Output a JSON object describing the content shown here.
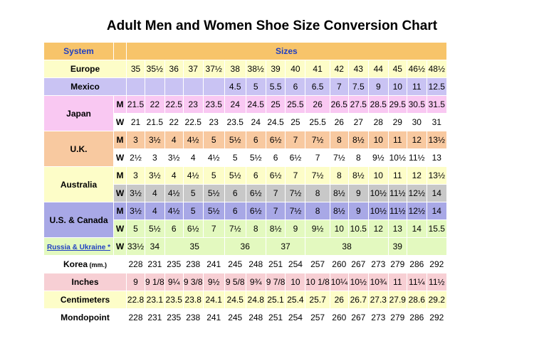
{
  "title": "Adult Men and Women Shoe Size Conversion Chart",
  "header": {
    "system": "System",
    "sizes": "Sizes"
  },
  "colors": {
    "orange": "#f7c46a",
    "yellow": "#fdfdc8",
    "purple": "#c9c3f3",
    "pink": "#f9c8f2",
    "peach": "#f8c9a0",
    "grey": "#c8c8c8",
    "blue": "#a8a8e6",
    "green": "#e3f9bf",
    "rose": "#f7cfd4"
  },
  "rows": [
    {
      "label": "Europe",
      "gender": "",
      "bg": "yellow",
      "cells": [
        "35",
        "35½",
        "36",
        "37",
        "37½",
        "38",
        "38½",
        "39",
        "40",
        "41",
        "42",
        "43",
        "44",
        "45",
        "46½",
        "48½"
      ]
    },
    {
      "label": "Mexico",
      "gender": "",
      "bg": "purple",
      "cells": [
        "",
        "",
        "",
        "",
        "",
        "4.5",
        "5",
        "5.5",
        "6",
        "6.5",
        "7",
        "7.5",
        "9",
        "10",
        "11",
        "12.5"
      ]
    },
    {
      "label": "Japan",
      "gender": "M",
      "bg": "pink",
      "cells": [
        "21.5",
        "22",
        "22.5",
        "23",
        "23.5",
        "24",
        "24.5",
        "25",
        "25.5",
        "26",
        "26.5",
        "27.5",
        "28.5",
        "29.5",
        "30.5",
        "31.5"
      ]
    },
    {
      "label": "",
      "gender": "W",
      "bg": "white",
      "cells": [
        "21",
        "21.5",
        "22",
        "22.5",
        "23",
        "23.5",
        "24",
        "24.5",
        "25",
        "25.5",
        "26",
        "27",
        "28",
        "29",
        "30",
        "31"
      ]
    },
    {
      "label": "U.K.",
      "gender": "M",
      "bg": "peach",
      "cells": [
        "3",
        "3½",
        "4",
        "4½",
        "5",
        "5½",
        "6",
        "6½",
        "7",
        "7½",
        "8",
        "8½",
        "10",
        "11",
        "12",
        "13½"
      ]
    },
    {
      "label": "",
      "gender": "W",
      "bg": "white",
      "cells": [
        "2½",
        "3",
        "3½",
        "4",
        "4½",
        "5",
        "5½",
        "6",
        "6½",
        "7",
        "7½",
        "8",
        "9½",
        "10½",
        "11½",
        "13"
      ]
    },
    {
      "label": "Australia",
      "gender": "M",
      "bg": "yellow",
      "cells": [
        "3",
        "3½",
        "4",
        "4½",
        "5",
        "5½",
        "6",
        "6½",
        "7",
        "7½",
        "8",
        "8½",
        "10",
        "11",
        "12",
        "13½"
      ]
    },
    {
      "label": "",
      "gender": "W",
      "bg": "grey",
      "cells": [
        "3½",
        "4",
        "4½",
        "5",
        "5½",
        "6",
        "6½",
        "7",
        "7½",
        "8",
        "8½",
        "9",
        "10½",
        "11½",
        "12½",
        "14"
      ]
    },
    {
      "label": "U.S. & Canada",
      "gender": "M",
      "bg": "blue",
      "cells": [
        "3½",
        "4",
        "4½",
        "5",
        "5½",
        "6",
        "6½",
        "7",
        "7½",
        "8",
        "8½",
        "9",
        "10½",
        "11½",
        "12½",
        "14"
      ]
    },
    {
      "label": "",
      "gender": "W",
      "bg": "green",
      "cells": [
        "5",
        "5½",
        "6",
        "6½",
        "7",
        "7½",
        "8",
        "8½",
        "9",
        "9½",
        "10",
        "10.5",
        "12",
        "13",
        "14",
        "15.5"
      ]
    },
    {
      "label": "Russia & Ukraine *",
      "gender": "W",
      "bg": "green",
      "russia": true,
      "cells": [
        "33½",
        "34",
        "",
        "35",
        "",
        "36",
        "",
        "37",
        "",
        "38",
        "",
        "39",
        "",
        "",
        "",
        ""
      ]
    },
    {
      "label": "Korea",
      "label_suffix": "(mm.)",
      "gender": "",
      "bg": "white",
      "cells": [
        "228",
        "231",
        "235",
        "238",
        "241",
        "245",
        "248",
        "251",
        "254",
        "257",
        "260",
        "267",
        "273",
        "279",
        "286",
        "292"
      ]
    },
    {
      "label": "Inches",
      "gender": "",
      "bg": "rose",
      "cells": [
        "9",
        "9 1/8",
        "9¼",
        "9 3/8",
        "9½",
        "9 5/8",
        "9¾",
        "9 7/8",
        "10",
        "10 1/8",
        "10¼",
        "10½",
        "10¾",
        "11",
        "11¼",
        "11½"
      ]
    },
    {
      "label": "Centimeters",
      "gender": "",
      "bg": "yellow",
      "cells": [
        "22.8",
        "23.1",
        "23.5",
        "23.8",
        "24.1",
        "24.5",
        "24.8",
        "25.1",
        "25.4",
        "25.7",
        "26",
        "26.7",
        "27.3",
        "27.9",
        "28.6",
        "29.2"
      ]
    },
    {
      "label": "Mondopoint",
      "gender": "",
      "bg": "white",
      "cells": [
        "228",
        "231",
        "235",
        "238",
        "241",
        "245",
        "248",
        "251",
        "254",
        "257",
        "260",
        "267",
        "273",
        "279",
        "286",
        "292"
      ]
    }
  ]
}
